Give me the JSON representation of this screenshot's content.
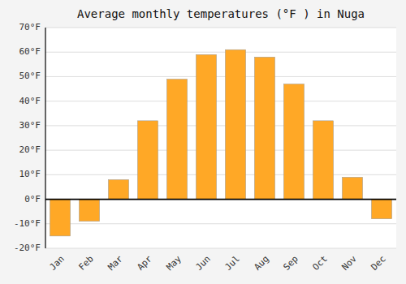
{
  "chart_data": {
    "type": "bar",
    "title": "Average monthly temperatures (°F ) in Nuga",
    "categories": [
      "Jan",
      "Feb",
      "Mar",
      "Apr",
      "May",
      "Jun",
      "Jul",
      "Aug",
      "Sep",
      "Oct",
      "Nov",
      "Dec"
    ],
    "values": [
      -15,
      -9,
      8,
      32,
      49,
      59,
      61,
      58,
      47,
      32,
      9,
      -8
    ],
    "color": "#FFA826",
    "ylim": [
      -20,
      70
    ],
    "yticks": [
      {
        "value": -20,
        "label": "-20°F"
      },
      {
        "value": -10,
        "label": "-10°F"
      },
      {
        "value": 0,
        "label": "0°F"
      },
      {
        "value": 10,
        "label": "10°F"
      },
      {
        "value": 20,
        "label": "20°F"
      },
      {
        "value": 30,
        "label": "30°F"
      },
      {
        "value": 40,
        "label": "40°F"
      },
      {
        "value": 50,
        "label": "50°F"
      },
      {
        "value": 60,
        "label": "60°F"
      },
      {
        "value": 70,
        "label": "70°F"
      }
    ],
    "grid": true
  }
}
